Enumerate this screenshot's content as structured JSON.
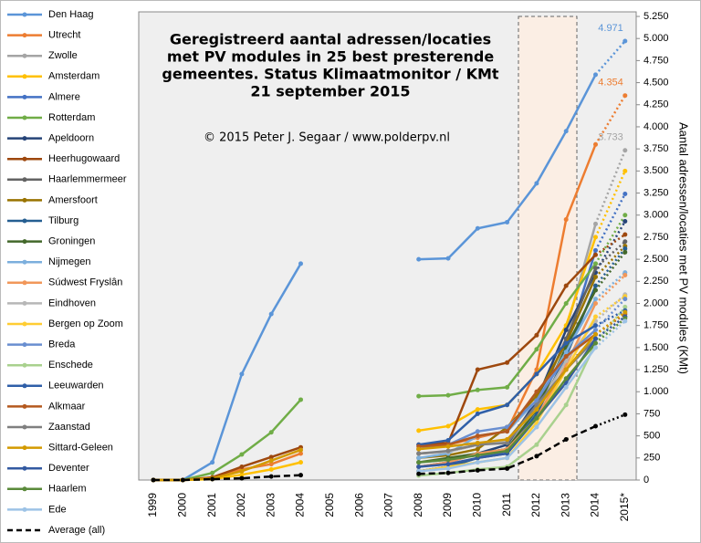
{
  "chart_data": {
    "type": "line",
    "title_lines": [
      "Geregistreerd aantal adressen/locaties",
      "met  PV modules in  25 best presterende",
      "gemeentes. Status Klimaatmonitor  / KMt",
      "21 september 2015"
    ],
    "subtitle": "© 2015 Peter J. Segaar / www.polderpv.nl",
    "y_label": "Aantal adressen/locaties met PV modules  (KMt)",
    "categories": [
      "1999",
      "2000",
      "2001",
      "2002",
      "2003",
      "2004",
      "2005",
      "2006",
      "2007",
      "2008",
      "2009",
      "2010",
      "2011",
      "2012",
      "2013",
      "2014",
      "2015*"
    ],
    "ylim": [
      0,
      5250
    ],
    "yticks": [
      0,
      {
        "value": 250,
        "label": "250"
      },
      {
        "value": 500,
        "label": "500"
      },
      {
        "value": 750,
        "label": "750"
      },
      {
        "value": 1000,
        "label": "1.000"
      },
      {
        "value": 1250,
        "label": "1.250"
      },
      {
        "value": 1500,
        "label": "1.500"
      },
      {
        "value": 1750,
        "label": "1.750"
      },
      {
        "value": 2000,
        "label": "2.000"
      },
      {
        "value": 2250,
        "label": "2.250"
      },
      {
        "value": 2500,
        "label": "2.500"
      },
      {
        "value": 2750,
        "label": "2.750"
      },
      {
        "value": 3000,
        "label": "3.000"
      },
      {
        "value": 3250,
        "label": "3.250"
      },
      {
        "value": 3500,
        "label": "3.500"
      },
      {
        "value": 3750,
        "label": "3.750"
      },
      {
        "value": 4000,
        "label": "4.000"
      },
      {
        "value": 4250,
        "label": "4.250"
      },
      {
        "value": 4500,
        "label": "4.500"
      },
      {
        "value": 4750,
        "label": "4.750"
      },
      {
        "value": 5000,
        "label": "5.000"
      },
      {
        "value": 5250,
        "label": "5.250"
      }
    ],
    "series": [
      {
        "name": "Den Haag",
        "color": "#5b95d8",
        "values": [
          0,
          0,
          200,
          1200,
          1880,
          2450,
          null,
          null,
          null,
          2500,
          2510,
          2850,
          2920,
          3360,
          3950,
          4590,
          4971
        ],
        "value_labels": [
          null,
          null,
          null,
          null,
          null,
          null,
          null,
          null,
          null,
          null,
          null,
          null,
          null,
          null,
          null,
          null,
          "4.971"
        ]
      },
      {
        "name": "Utrecht",
        "color": "#ed7d31",
        "values": [
          0,
          0,
          30,
          120,
          180,
          300,
          null,
          null,
          null,
          350,
          400,
          480,
          560,
          1250,
          2950,
          3800,
          4354
        ],
        "value_labels": [
          null,
          null,
          null,
          null,
          null,
          null,
          null,
          null,
          null,
          null,
          null,
          null,
          null,
          null,
          null,
          null,
          "4.354"
        ]
      },
      {
        "name": "Zwolle",
        "color": "#a5a5a5",
        "values": [
          null,
          null,
          null,
          null,
          null,
          null,
          null,
          null,
          null,
          200,
          230,
          300,
          350,
          900,
          1700,
          2900,
          3733
        ],
        "value_labels": [
          null,
          null,
          null,
          null,
          null,
          null,
          null,
          null,
          null,
          null,
          null,
          null,
          null,
          null,
          null,
          null,
          "3.733"
        ]
      },
      {
        "name": "Amsterdam",
        "color": "#ffc000",
        "values": [
          0,
          0,
          10,
          60,
          120,
          200,
          null,
          null,
          null,
          560,
          610,
          800,
          850,
          1200,
          1750,
          2750,
          3500
        ]
      },
      {
        "name": "Almere",
        "color": "#4472c4",
        "values": [
          null,
          null,
          null,
          null,
          null,
          null,
          null,
          null,
          null,
          100,
          150,
          250,
          330,
          800,
          1500,
          2600,
          3240
        ]
      },
      {
        "name": "Rotterdam",
        "color": "#70ad47",
        "values": [
          0,
          0,
          80,
          290,
          540,
          910,
          null,
          null,
          null,
          950,
          960,
          1020,
          1050,
          1480,
          2000,
          2450,
          3000
        ]
      },
      {
        "name": "Apeldoorn",
        "color": "#264478",
        "values": [
          null,
          null,
          null,
          null,
          null,
          null,
          null,
          null,
          null,
          150,
          200,
          300,
          400,
          900,
          1700,
          2350,
          2930
        ]
      },
      {
        "name": "Heerhugowaard",
        "color": "#9e480e",
        "values": [
          0,
          0,
          30,
          150,
          260,
          370,
          null,
          null,
          null,
          400,
          420,
          1250,
          1330,
          1640,
          2200,
          2550,
          2780
        ]
      },
      {
        "name": "Haarlemmermeer",
        "color": "#636363",
        "values": [
          null,
          null,
          null,
          null,
          null,
          null,
          null,
          null,
          null,
          300,
          320,
          400,
          450,
          850,
          1600,
          2400,
          2700
        ]
      },
      {
        "name": "Amersfoort",
        "color": "#997300",
        "values": [
          null,
          null,
          null,
          null,
          null,
          null,
          null,
          null,
          null,
          250,
          280,
          350,
          600,
          950,
          1550,
          2300,
          2650
        ]
      },
      {
        "name": "Tilburg",
        "color": "#255e91",
        "values": [
          null,
          null,
          null,
          null,
          null,
          null,
          null,
          null,
          null,
          100,
          150,
          250,
          300,
          750,
          1400,
          2200,
          2620
        ]
      },
      {
        "name": "Groningen",
        "color": "#43682b",
        "values": [
          null,
          null,
          null,
          null,
          null,
          null,
          null,
          null,
          null,
          200,
          250,
          300,
          350,
          800,
          1500,
          2150,
          2580
        ]
      },
      {
        "name": "Nijmegen",
        "color": "#7cafdd",
        "values": [
          null,
          null,
          null,
          null,
          null,
          null,
          null,
          null,
          null,
          250,
          300,
          500,
          550,
          900,
          1450,
          2050,
          2350
        ]
      },
      {
        "name": "Súdwest Fryslân",
        "color": "#f1975a",
        "values": [
          null,
          null,
          null,
          null,
          null,
          null,
          null,
          null,
          null,
          150,
          200,
          300,
          350,
          700,
          1300,
          2000,
          2320
        ]
      },
      {
        "name": "Eindhoven",
        "color": "#b7b7b7",
        "values": [
          null,
          null,
          null,
          null,
          null,
          null,
          null,
          null,
          null,
          300,
          320,
          400,
          450,
          800,
          1350,
          1800,
          2100
        ]
      },
      {
        "name": "Bergen op Zoom",
        "color": "#ffcd33",
        "values": [
          null,
          null,
          null,
          null,
          null,
          null,
          null,
          null,
          null,
          100,
          150,
          200,
          250,
          650,
          1250,
          1850,
          2080
        ]
      },
      {
        "name": "Breda",
        "color": "#698ed0",
        "values": [
          null,
          null,
          null,
          null,
          null,
          null,
          null,
          null,
          null,
          350,
          400,
          550,
          600,
          900,
          1400,
          1700,
          2050
        ]
      },
      {
        "name": "Enschede",
        "color": "#a9d18e",
        "values": [
          null,
          null,
          null,
          null,
          null,
          null,
          null,
          null,
          null,
          50,
          80,
          120,
          150,
          400,
          850,
          1550,
          1960
        ]
      },
      {
        "name": "Leeuwarden",
        "color": "#2f5fa8",
        "values": [
          null,
          null,
          null,
          null,
          null,
          null,
          null,
          null,
          null,
          400,
          450,
          750,
          850,
          1200,
          1550,
          1750,
          1920
        ]
      },
      {
        "name": "Alkmaar",
        "color": "#b4591f",
        "values": [
          null,
          null,
          null,
          null,
          null,
          null,
          null,
          null,
          null,
          380,
          400,
          500,
          550,
          1000,
          1400,
          1650,
          1880
        ]
      },
      {
        "name": "Zaanstad",
        "color": "#7f7f7f",
        "values": [
          null,
          null,
          null,
          null,
          null,
          null,
          null,
          null,
          null,
          300,
          330,
          400,
          420,
          850,
          1250,
          1600,
          1850
        ]
      },
      {
        "name": "Sittard-Geleen",
        "color": "#d39a00",
        "values": [
          0,
          0,
          20,
          100,
          220,
          340,
          null,
          null,
          null,
          350,
          380,
          420,
          460,
          800,
          1250,
          1650,
          1900
        ]
      },
      {
        "name": "Deventer",
        "color": "#335aa1",
        "values": [
          null,
          null,
          null,
          null,
          null,
          null,
          null,
          null,
          null,
          150,
          180,
          250,
          300,
          700,
          1100,
          1600,
          1850
        ]
      },
      {
        "name": "Haarlem",
        "color": "#5a8a3a",
        "values": [
          null,
          null,
          null,
          null,
          null,
          null,
          null,
          null,
          null,
          200,
          230,
          280,
          330,
          700,
          1150,
          1550,
          1830
        ]
      },
      {
        "name": "Ede",
        "color": "#9dc3e6",
        "values": [
          null,
          null,
          null,
          null,
          null,
          null,
          null,
          null,
          null,
          100,
          130,
          200,
          250,
          600,
          1050,
          1500,
          1800
        ]
      },
      {
        "name": "Average (all)",
        "color": "#000000",
        "dashed": true,
        "values": [
          0,
          0,
          10,
          20,
          40,
          55,
          null,
          null,
          null,
          70,
          80,
          110,
          130,
          270,
          460,
          610,
          740
        ]
      }
    ]
  }
}
